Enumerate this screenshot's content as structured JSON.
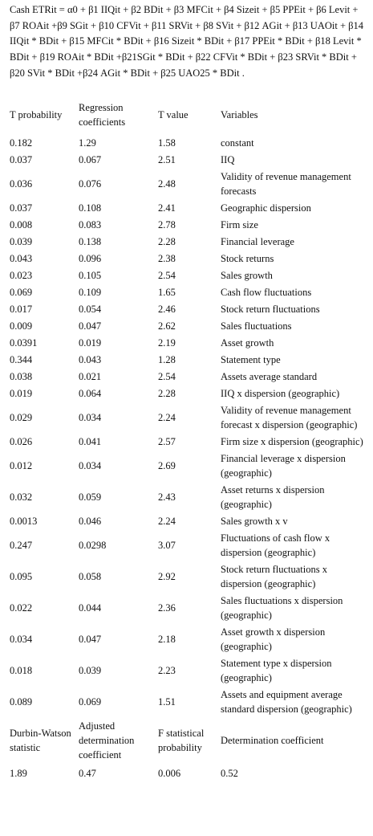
{
  "header": {
    "equation": "Cash ETRit = α0 + β1 IIQit + β2 BDit + β3 MFCit + β4 Sizeit + β5 PPEit + β6 Levit + β7 ROAit +β9 SGit + β10 CFVit + β11 SRVit + β8 SVit + β12 AGit + β13 UAOit + β14 IIQit * BDit + β15 MFCit * BDit + β16 Sizeit * BDit + β17 PPEit * BDit + β18 Levit * BDit + β19 ROAit * BDit +β21SGit * BDit + β22 CFVit * BDit + β23 SRVit * BDit + β20 SVit * BDit +β24 AGit * BDit + β25 UAO25 * BDit ."
  },
  "table": {
    "columns": [
      "T probability",
      "Regression coefficients",
      "T value",
      "Variables"
    ],
    "rows": [
      [
        "0.182",
        "1.29",
        "1.58",
        "constant"
      ],
      [
        "0.037",
        "0.067",
        "2.51",
        "IIQ"
      ],
      [
        "0.036",
        "0.076",
        "2.48",
        "Validity of revenue management forecasts"
      ],
      [
        "0.037",
        "0.108",
        "2.41",
        "Geographic dispersion"
      ],
      [
        "0.008",
        "0.083",
        "2.78",
        "Firm size"
      ],
      [
        "0.039",
        "0.138",
        "2.28",
        "Financial leverage"
      ],
      [
        "0.043",
        "0.096",
        "2.38",
        "Stock returns"
      ],
      [
        "0.023",
        "0.105",
        "2.54",
        "Sales growth"
      ],
      [
        "0.069",
        "0.109",
        "1.65",
        "Cash flow fluctuations"
      ],
      [
        "0.017",
        "0.054",
        "2.46",
        "Stock return fluctuations"
      ],
      [
        "0.009",
        "0.047",
        "2.62",
        "Sales fluctuations"
      ],
      [
        "0.0391",
        "0.019",
        "2.19",
        "Asset growth"
      ],
      [
        "0.344",
        "0.043",
        "1.28",
        "Statement type"
      ],
      [
        "0.038",
        "0.021",
        "2.54",
        "Assets average standard"
      ],
      [
        "0.019",
        "0.064",
        "2.28",
        "IIQ x dispersion (geographic)"
      ],
      [
        "0.029",
        "0.034",
        "2.24",
        "Validity of revenue management forecast x dispersion (geographic)"
      ],
      [
        "0.026",
        "0.041",
        "2.57",
        "Firm size x dispersion (geographic)"
      ],
      [
        "0.012",
        "0.034",
        "2.69",
        "Financial leverage x dispersion (geographic)"
      ],
      [
        "0.032",
        "0.059",
        "2.43",
        "Asset returns x dispersion (geographic)"
      ],
      [
        "0.0013",
        "0.046",
        "2.24",
        "Sales growth x v"
      ],
      [
        "0.247",
        "0.0298",
        "3.07",
        "Fluctuations of cash flow x dispersion (geographic)"
      ],
      [
        "0.095",
        "0.058",
        "2.92",
        "Stock return fluctuations x dispersion (geographic)"
      ],
      [
        "0.022",
        "0.044",
        "2.36",
        "Sales fluctuations x dispersion (geographic)"
      ],
      [
        "0.034",
        "0.047",
        "2.18",
        "Asset growth x dispersion (geographic)"
      ],
      [
        "0.018",
        "0.039",
        "2.23",
        "Statement type x dispersion (geographic)"
      ],
      [
        "0.089",
        "0.069",
        "1.51",
        "Assets and equipment average standard dispersion (geographic)"
      ]
    ],
    "footer_columns": [
      "Durbin-Watson statistic",
      "Adjusted determination coefficient",
      "F statistical probability",
      "Determination coefficient"
    ],
    "footer_values": [
      "1.89",
      "0.47",
      "0.006",
      "0.52"
    ]
  }
}
